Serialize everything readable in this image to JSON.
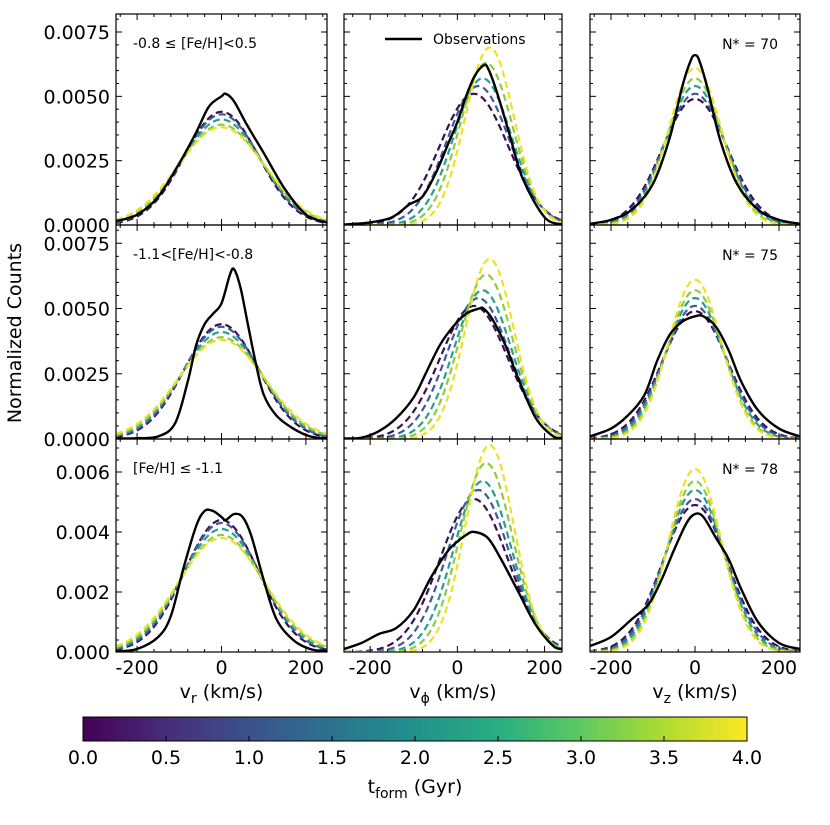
{
  "chart_data": {
    "type": "line",
    "ylabel": "Normalized Counts",
    "legend": {
      "label": "Observations",
      "placement": "top-right"
    },
    "columns": [
      {
        "key": "vr",
        "label_main": "v",
        "label_sub": "r",
        "label_rest": " (km/s)",
        "xlim": [
          -250,
          250
        ],
        "xticks": [
          "-200",
          "0",
          "200"
        ],
        "xtick_values": [
          -200,
          0,
          200
        ]
      },
      {
        "key": "vphi",
        "label_main": "v",
        "label_sub": "ϕ",
        "label_rest": " (km/s)",
        "xlim": [
          -260,
          240
        ],
        "xticks": [
          "-200",
          "0",
          "200"
        ],
        "xtick_values": [
          -200,
          0,
          200
        ]
      },
      {
        "key": "vz",
        "label_main": "v",
        "label_sub": "z",
        "label_rest": " (km/s)",
        "xlim": [
          -250,
          250
        ],
        "xticks": [
          "-200",
          "0",
          "200"
        ],
        "xtick_values": [
          -200,
          0,
          200
        ]
      }
    ],
    "rows": [
      {
        "metallicity": "-0.8 ≤ [Fe/H]<0.5",
        "nstar": "N* = 70",
        "ylim": [
          0,
          0.0082
        ],
        "yticks": [
          "0.0000",
          "0.0025",
          "0.0050",
          "0.0075"
        ],
        "ytick_values": [
          0,
          0.0025,
          0.005,
          0.0075
        ]
      },
      {
        "metallicity": "-1.1<[Fe/H]<-0.8",
        "nstar": "N* = 75",
        "ylim": [
          0,
          0.0082
        ],
        "yticks": [
          "0.0000",
          "0.0025",
          "0.0050",
          "0.0075"
        ],
        "ytick_values": [
          0,
          0.0025,
          0.005,
          0.0075
        ]
      },
      {
        "metallicity": "[Fe/H] ≤ -1.1",
        "nstar": "N* = 78",
        "ylim": [
          0,
          0.0071
        ],
        "yticks": [
          "0.000",
          "0.002",
          "0.004",
          "0.006"
        ],
        "ytick_values": [
          0,
          0.002,
          0.004,
          0.006
        ]
      }
    ],
    "model_series": [
      {
        "t_form": 0.5,
        "color": "#3b0f53"
      },
      {
        "t_form": 1.5,
        "color": "#3d5a99"
      },
      {
        "t_form": 2.5,
        "color": "#2a9d8f"
      },
      {
        "t_form": 3.2,
        "color": "#8ccc43"
      },
      {
        "t_form": 3.9,
        "color": "#f0e020"
      }
    ],
    "model_params": {
      "vr": {
        "amps": [
          0.0044,
          0.0043,
          0.0041,
          0.0039,
          0.0038
        ],
        "centers": [
          0,
          0,
          0,
          0,
          0
        ],
        "sigmas": [
          88,
          91,
          95,
          99,
          103
        ]
      },
      "vphi": {
        "amps": [
          0.0051,
          0.0054,
          0.0057,
          0.0063,
          0.0069
        ],
        "centers": [
          38,
          48,
          58,
          66,
          74
        ],
        "sigmas": [
          78,
          72,
          66,
          61,
          56
        ]
      },
      "vz": {
        "amps": [
          0.0049,
          0.0051,
          0.0054,
          0.0057,
          0.0061
        ],
        "centers": [
          0,
          0,
          0,
          0,
          0
        ],
        "sigmas": [
          78,
          74,
          70,
          66,
          63
        ]
      }
    },
    "observations": [
      {
        "vr": {
          "x": [
            -250,
            -200,
            -150,
            -100,
            -60,
            -30,
            0,
            10,
            30,
            60,
            100,
            150,
            200,
            250
          ],
          "y": [
            0.00015,
            0.0004,
            0.0011,
            0.0024,
            0.0036,
            0.0046,
            0.005,
            0.0051,
            0.0048,
            0.0039,
            0.0028,
            0.0014,
            0.0004,
            0.0001
          ]
        },
        "vphi": {
          "x": [
            -260,
            -200,
            -150,
            -110,
            -80,
            -50,
            -20,
            0,
            20,
            40,
            60,
            70,
            90,
            120,
            150,
            200,
            240
          ],
          "y": [
            2e-05,
            0.0001,
            0.0003,
            0.0008,
            0.0011,
            0.002,
            0.0032,
            0.004,
            0.005,
            0.0058,
            0.0062,
            0.0061,
            0.0052,
            0.0035,
            0.0018,
            0.0003,
            2e-05
          ]
        },
        "vz": {
          "x": [
            -250,
            -200,
            -150,
            -100,
            -60,
            -30,
            -10,
            0,
            10,
            30,
            60,
            100,
            150,
            200,
            250
          ],
          "y": [
            5e-05,
            0.0002,
            0.0006,
            0.0016,
            0.0034,
            0.0054,
            0.0064,
            0.0066,
            0.0064,
            0.0053,
            0.0033,
            0.0016,
            0.0006,
            0.0002,
            5e-05
          ]
        }
      },
      {
        "vr": {
          "x": [
            -250,
            -200,
            -150,
            -110,
            -80,
            -60,
            -40,
            -20,
            0,
            20,
            30,
            45,
            60,
            80,
            100,
            130,
            170,
            210,
            250
          ],
          "y": [
            2e-05,
            3e-05,
            0.0001,
            0.0006,
            0.0022,
            0.0036,
            0.0044,
            0.0048,
            0.0052,
            0.0063,
            0.0065,
            0.0058,
            0.0046,
            0.003,
            0.0017,
            0.0009,
            0.0004,
            0.0001,
            2e-05
          ]
        },
        "vphi": {
          "x": [
            -260,
            -220,
            -180,
            -140,
            -100,
            -70,
            -40,
            -10,
            20,
            50,
            60,
            80,
            110,
            140,
            180,
            220,
            240
          ],
          "y": [
            2e-05,
            5e-05,
            0.0003,
            0.0008,
            0.0016,
            0.0026,
            0.0036,
            0.0043,
            0.0048,
            0.005,
            0.005,
            0.0046,
            0.0036,
            0.0023,
            0.0008,
            0.0001,
            5e-05
          ]
        },
        "vz": {
          "x": [
            -250,
            -200,
            -160,
            -120,
            -90,
            -60,
            -30,
            0,
            20,
            50,
            80,
            110,
            150,
            200,
            250
          ],
          "y": [
            0.0001,
            0.0004,
            0.0009,
            0.0017,
            0.003,
            0.004,
            0.0045,
            0.0047,
            0.0047,
            0.0043,
            0.0034,
            0.0022,
            0.0011,
            0.0004,
            0.0001
          ]
        }
      },
      {
        "vr": {
          "x": [
            -250,
            -200,
            -150,
            -120,
            -90,
            -60,
            -40,
            -20,
            0,
            10,
            30,
            50,
            70,
            100,
            130,
            170,
            210,
            250
          ],
          "y": [
            2e-05,
            0.0001,
            0.0005,
            0.0012,
            0.0028,
            0.0042,
            0.0047,
            0.0047,
            0.0045,
            0.0044,
            0.0046,
            0.0045,
            0.0039,
            0.0024,
            0.0011,
            0.0004,
            0.0001,
            2e-05
          ]
        },
        "vphi": {
          "x": [
            -260,
            -220,
            -180,
            -140,
            -100,
            -60,
            -20,
            20,
            40,
            70,
            100,
            140,
            180,
            220,
            240
          ],
          "y": [
            0.0001,
            0.0003,
            0.0006,
            0.0008,
            0.0014,
            0.0025,
            0.0034,
            0.0039,
            0.004,
            0.0038,
            0.0031,
            0.002,
            0.0009,
            0.0002,
            0.0001
          ]
        },
        "vz": {
          "x": [
            -250,
            -200,
            -150,
            -110,
            -80,
            -50,
            -20,
            0,
            20,
            50,
            80,
            110,
            150,
            200,
            250
          ],
          "y": [
            0.0002,
            0.0005,
            0.0011,
            0.0016,
            0.0024,
            0.0034,
            0.0043,
            0.0046,
            0.0045,
            0.0038,
            0.0031,
            0.0021,
            0.001,
            0.0003,
            0.0001
          ]
        }
      }
    ],
    "colorbar": {
      "label_main": "t",
      "label_sub": "form",
      "label_rest": " (Gyr)",
      "range": [
        0,
        4
      ],
      "ticks": [
        "0.0",
        "0.5",
        "1.0",
        "1.5",
        "2.0",
        "2.5",
        "3.0",
        "3.5",
        "4.0"
      ],
      "tick_values": [
        0,
        0.5,
        1,
        1.5,
        2,
        2.5,
        3,
        3.5,
        4
      ],
      "colormap": "viridis"
    }
  }
}
